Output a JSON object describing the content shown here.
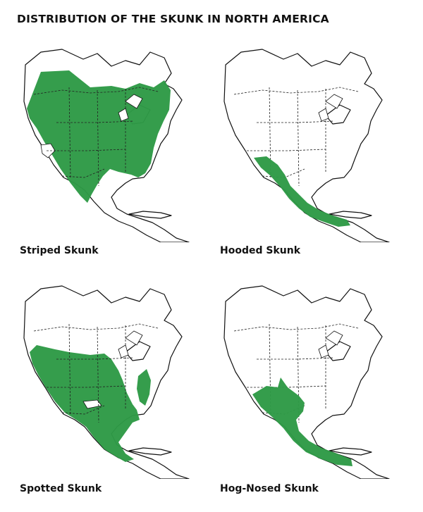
{
  "title": "DISTRIBUTION OF THE SKUNK IN NORTH AMERICA",
  "range_color": "#2e9a46",
  "maps": [
    {
      "caption": "Striped Skunk"
    },
    {
      "caption": "Hooded Skunk"
    },
    {
      "caption": "Spotted Skunk"
    },
    {
      "caption": "Hog-Nosed Skunk"
    }
  ]
}
